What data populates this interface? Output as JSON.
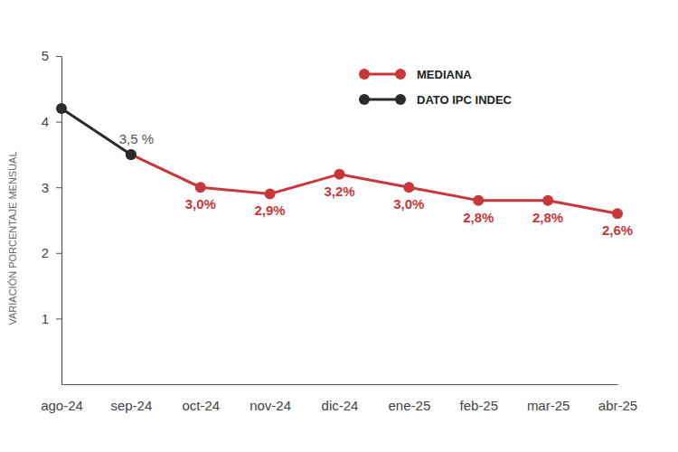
{
  "chart_data": {
    "type": "line",
    "ylabel": "VARIACIÓN PORCENTAJE MENSUAL",
    "categories": [
      "ago-24",
      "sep-24",
      "oct-24",
      "nov-24",
      "dic-24",
      "ene-25",
      "feb-25",
      "mar-25",
      "abr-25"
    ],
    "series": [
      {
        "name": "MEDIANA",
        "color": "#c8373a",
        "marker": "circle",
        "values": [
          null,
          3.5,
          3.0,
          2.9,
          3.2,
          3.0,
          2.8,
          2.8,
          2.6
        ],
        "value_labels": [
          null,
          null,
          "3,0%",
          "2,9%",
          "3,2%",
          "3,0%",
          "2,8%",
          "2,8%",
          "2,6%"
        ]
      },
      {
        "name": "DATO IPC INDEC",
        "color": "#2b2b2b",
        "marker": "circle",
        "values": [
          4.2,
          3.5,
          null,
          null,
          null,
          null,
          null,
          null,
          null
        ],
        "value_labels": [
          null,
          "3,5 %",
          null,
          null,
          null,
          null,
          null,
          null,
          null
        ]
      }
    ],
    "ylim": [
      0,
      5
    ],
    "yticks": [
      1,
      2,
      3,
      4,
      5
    ],
    "grid": false,
    "legend": "top-right",
    "data_labels": true
  }
}
